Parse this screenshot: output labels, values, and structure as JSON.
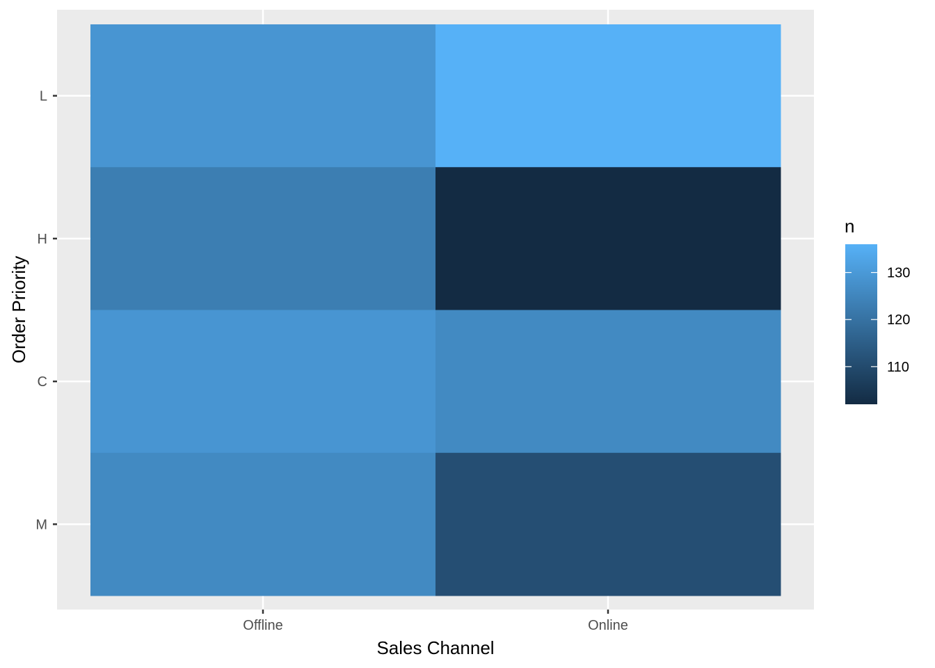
{
  "chart_data": {
    "type": "heatmap",
    "xlabel": "Sales Channel",
    "ylabel": "Order Priority",
    "x_categories": [
      "Offline",
      "Online"
    ],
    "y_categories": [
      "M",
      "C",
      "H",
      "L"
    ],
    "cells": [
      {
        "x": "Offline",
        "y": "L",
        "value": 129
      },
      {
        "x": "Online",
        "y": "L",
        "value": 136
      },
      {
        "x": "Offline",
        "y": "H",
        "value": 123
      },
      {
        "x": "Online",
        "y": "H",
        "value": 102
      },
      {
        "x": "Offline",
        "y": "C",
        "value": 129
      },
      {
        "x": "Online",
        "y": "C",
        "value": 126
      },
      {
        "x": "Offline",
        "y": "M",
        "value": 126
      },
      {
        "x": "Online",
        "y": "M",
        "value": 111
      }
    ],
    "legend": {
      "title": "n",
      "ticks": [
        110,
        120,
        130
      ],
      "range": [
        102,
        136
      ],
      "color_low": "#132B43",
      "color_high": "#56B1F7",
      "placement": "right"
    },
    "panel_background": "#EBEBEB",
    "grid": true
  }
}
